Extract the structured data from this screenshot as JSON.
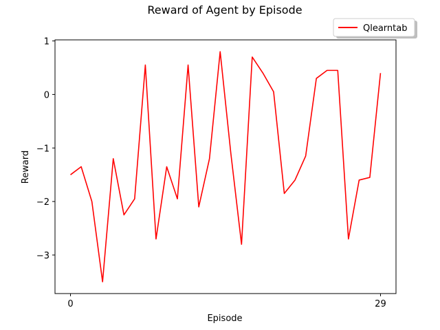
{
  "chart_data": {
    "type": "line",
    "title": "Reward of Agent by Episode",
    "xlabel": "Episode",
    "ylabel": "Reward",
    "xlim": [
      -1.45,
      30.45
    ],
    "ylim": [
      -3.72,
      1.02
    ],
    "xticks": [
      0,
      29
    ],
    "xtick_labels": [
      "0",
      "29"
    ],
    "yticks": [
      -3,
      -2,
      -1,
      0,
      1
    ],
    "ytick_labels": [
      "−3",
      "−2",
      "−1",
      "0",
      "1"
    ],
    "grid": false,
    "legend": {
      "position": "top-right",
      "entries": [
        "Qlearntab"
      ]
    },
    "series": [
      {
        "name": "Qlearntab",
        "color": "#ff0000",
        "x": [
          0,
          1,
          2,
          3,
          4,
          5,
          6,
          7,
          8,
          9,
          10,
          11,
          12,
          13,
          14,
          15,
          16,
          17,
          18,
          19,
          20,
          21,
          22,
          23,
          24,
          25,
          26,
          27,
          28,
          29
        ],
        "y": [
          -1.5,
          -1.35,
          -2.0,
          -3.5,
          -1.2,
          -2.25,
          -1.95,
          0.55,
          -2.7,
          -1.35,
          -1.95,
          0.55,
          -2.1,
          -1.2,
          0.8,
          -1.1,
          -2.8,
          0.7,
          0.4,
          0.05,
          -1.85,
          -1.6,
          -1.15,
          0.3,
          0.45,
          0.45,
          -2.7,
          -1.6,
          -1.55,
          0.4
        ]
      }
    ]
  }
}
